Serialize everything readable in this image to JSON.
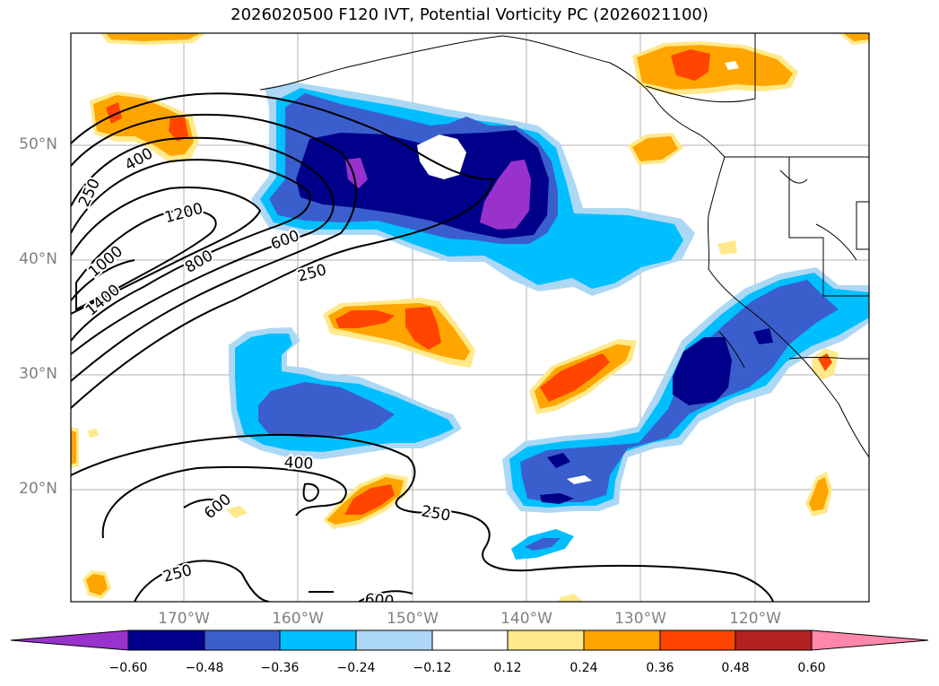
{
  "title": "2026020500 F120 IVT, Potential Vorticity PC (2026021100)",
  "latitude_labels": [
    "50°N",
    "40°N",
    "30°N",
    "20°N"
  ],
  "longitude_labels": [
    "170°W",
    "160°W",
    "150°W",
    "140°W",
    "130°W",
    "120°W"
  ],
  "contour_labels": [
    "400",
    "250",
    "1200",
    "1000",
    "800",
    "600",
    "1400",
    "250",
    "400",
    "600",
    "250",
    "250",
    "600"
  ],
  "colorbar": {
    "ticks": [
      "−0.60",
      "−0.48",
      "−0.36",
      "−0.24",
      "−0.12",
      "0.12",
      "0.24",
      "0.36",
      "0.48",
      "0.60"
    ],
    "colors": [
      "#9932cc",
      "#00008b",
      "#3a5fcd",
      "#00bfff",
      "#add8f5",
      "#ffffff",
      "#ffe98a",
      "#ffa500",
      "#ff4500",
      "#b22222",
      "#ff88aa"
    ]
  }
}
